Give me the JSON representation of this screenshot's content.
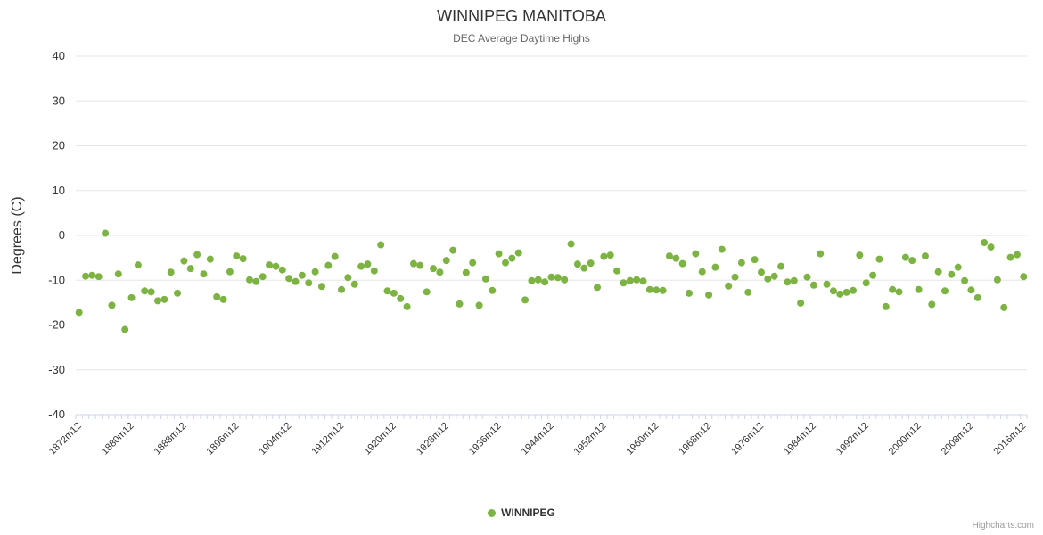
{
  "title": "WINNIPEG MANITOBA",
  "subtitle": "DEC Average Daytime Highs",
  "credits": "Highcharts.com",
  "legend": {
    "items": [
      {
        "label": "WINNIPEG",
        "color": "#7cb342"
      }
    ]
  },
  "colors": {
    "point": "#7cb342",
    "grid": "#e6e6e6",
    "axis_line": "#ccd6eb",
    "tick": "#ccd6eb",
    "axis_label": "#333333",
    "axis_title": "#333333"
  },
  "chart_data": {
    "type": "scatter",
    "title": "WINNIPEG MANITOBA",
    "subtitle": "DEC Average Daytime Highs",
    "ylabel": "Degrees (C)",
    "xlabel": "",
    "ylim": [
      -40,
      40
    ],
    "y_tick_interval": 10,
    "y_tick_labels": [
      "40",
      "30",
      "20",
      "10",
      "0",
      "-10",
      "-20",
      "-30",
      "-40"
    ],
    "grid": true,
    "legend_position": "bottom",
    "x_category_suffix": "m12",
    "x_label_every": 8,
    "x_tick_labels": [
      "1872m12",
      "1880m12",
      "1888m12",
      "1896m12",
      "1904m12",
      "1912m12",
      "1920m12",
      "1928m12",
      "1936m12",
      "1944m12",
      "1952m12",
      "1960m12",
      "1968m12",
      "1976m12",
      "1984m12",
      "1992m12",
      "2000m12",
      "2008m12",
      "2016m12"
    ],
    "series": [
      {
        "name": "WINNIPEG",
        "color": "#7cb342",
        "year_start": 1872,
        "year_end": 2016,
        "values": [
          -17.2,
          -9.1,
          -8.9,
          -9.2,
          0.5,
          -15.6,
          -8.6,
          -21.0,
          -13.9,
          -6.6,
          -12.4,
          -12.6,
          -14.6,
          -14.3,
          -8.2,
          -12.9,
          -5.7,
          -7.4,
          -4.3,
          -8.6,
          -5.3,
          -13.7,
          -14.3,
          -8.1,
          -4.6,
          -5.2,
          -9.9,
          -10.3,
          -9.2,
          -6.6,
          -6.9,
          -7.7,
          -9.6,
          -10.3,
          -8.9,
          -10.6,
          -8.1,
          -11.4,
          -6.7,
          -4.7,
          -12.1,
          -9.4,
          -10.9,
          -6.9,
          -6.4,
          -7.9,
          -2.1,
          -12.4,
          -12.9,
          -14.1,
          -15.9,
          -6.3,
          -6.7,
          -12.6,
          -7.4,
          -8.2,
          -5.6,
          -3.3,
          -15.3,
          -8.3,
          -6.1,
          -15.6,
          -9.7,
          -12.3,
          -4.1,
          -6.1,
          -5.1,
          -3.9,
          -14.4,
          -10.1,
          -9.9,
          -10.4,
          -9.3,
          -9.4,
          -9.9,
          -1.9,
          -6.4,
          -7.3,
          -6.2,
          -11.6,
          -4.7,
          -4.4,
          -7.9,
          -10.6,
          -10.1,
          -9.9,
          -10.2,
          -12.1,
          -12.2,
          -12.3,
          -4.6,
          -5.1,
          -6.3,
          -12.9,
          -4.1,
          -8.1,
          -13.3,
          -7.1,
          -3.1,
          -11.3,
          -9.3,
          -6.1,
          -12.7,
          -5.4,
          -8.2,
          -9.7,
          -9.1,
          -6.9,
          -10.4,
          -10.1,
          -15.1,
          -9.3,
          -11.1,
          -4.1,
          -10.9,
          -12.4,
          -13.1,
          -12.7,
          -12.3,
          -4.4,
          -10.6,
          -8.9,
          -5.3,
          -15.9,
          -12.1,
          -12.6,
          -4.9,
          -5.6,
          -12.1,
          -4.6,
          -15.4,
          -8.1,
          -12.4,
          -8.7,
          -7.1,
          -10.1,
          -12.2,
          -13.9,
          -1.6,
          -2.6,
          -9.9,
          -16.1,
          -4.9,
          -4.3,
          -9.2
        ]
      }
    ]
  }
}
